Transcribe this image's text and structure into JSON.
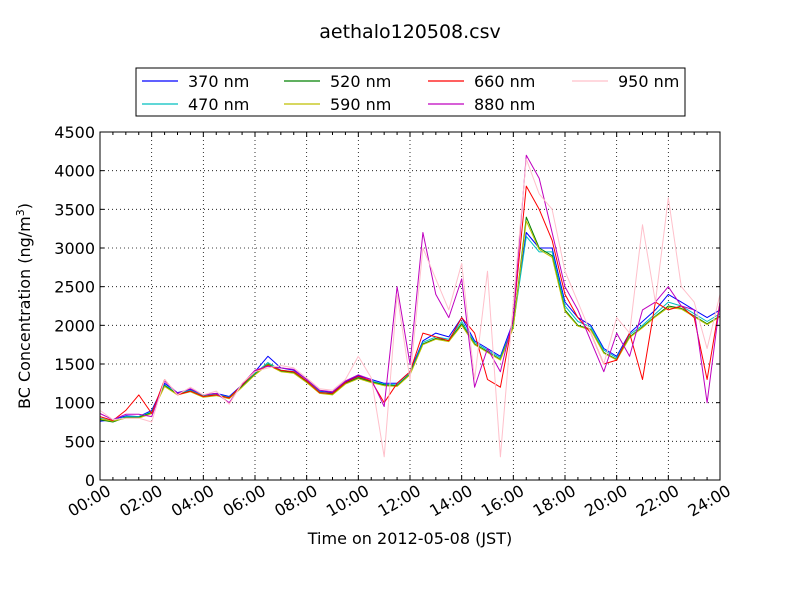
{
  "chart_data": {
    "type": "line",
    "title": "aethalo120508.csv",
    "xlabel": "Time on 2012-05-08 (JST)",
    "ylabel": "BC Concentration (ng/m",
    "ylabel_sup": "3",
    "ylabel_end": ")",
    "xlim": [
      "00:00",
      "24:00"
    ],
    "ylim": [
      0,
      4500
    ],
    "grid": true,
    "legend_position": "top",
    "x_ticks": [
      "00:00",
      "02:00",
      "04:00",
      "06:00",
      "08:00",
      "10:00",
      "12:00",
      "14:00",
      "16:00",
      "18:00",
      "20:00",
      "22:00",
      "24:00"
    ],
    "y_ticks": [
      "0",
      "500",
      "1000",
      "1500",
      "2000",
      "2500",
      "3000",
      "3500",
      "4000",
      "4500"
    ],
    "x": [
      "00:00",
      "00:30",
      "01:00",
      "01:30",
      "02:00",
      "02:30",
      "03:00",
      "03:30",
      "04:00",
      "04:30",
      "05:00",
      "05:30",
      "06:00",
      "06:30",
      "07:00",
      "07:30",
      "08:00",
      "08:30",
      "09:00",
      "09:30",
      "10:00",
      "10:30",
      "11:00",
      "11:30",
      "12:00",
      "12:30",
      "13:00",
      "13:30",
      "14:00",
      "14:30",
      "15:00",
      "15:30",
      "16:00",
      "16:30",
      "17:00",
      "17:30",
      "18:00",
      "18:30",
      "19:00",
      "19:30",
      "20:00",
      "20:30",
      "21:00",
      "21:30",
      "22:00",
      "22:30",
      "23:00",
      "23:30",
      "24:00"
    ],
    "series": [
      {
        "name": "370 nm",
        "color": "#0000ff",
        "values": [
          760,
          780,
          830,
          820,
          900,
          1250,
          1130,
          1170,
          1100,
          1120,
          1080,
          1230,
          1400,
          1600,
          1450,
          1420,
          1300,
          1150,
          1130,
          1270,
          1350,
          1300,
          1250,
          1250,
          1400,
          1800,
          1900,
          1850,
          2100,
          1800,
          1700,
          1600,
          2050,
          3200,
          3000,
          3000,
          2300,
          2100,
          2000,
          1700,
          1600,
          1900,
          2050,
          2200,
          2400,
          2300,
          2200,
          2100,
          2200
        ]
      },
      {
        "name": "470 nm",
        "color": "#00bfbf",
        "values": [
          800,
          760,
          820,
          820,
          880,
          1230,
          1120,
          1160,
          1090,
          1110,
          1070,
          1220,
          1380,
          1520,
          1420,
          1400,
          1280,
          1140,
          1120,
          1260,
          1330,
          1280,
          1240,
          1230,
          1380,
          1780,
          1850,
          1820,
          2050,
          1780,
          1680,
          1580,
          2000,
          3150,
          2950,
          2950,
          2250,
          2050,
          1980,
          1680,
          1580,
          1880,
          2000,
          2150,
          2300,
          2250,
          2150,
          2050,
          2150
        ]
      },
      {
        "name": "520 nm",
        "color": "#008000",
        "values": [
          780,
          750,
          810,
          810,
          870,
          1220,
          1110,
          1150,
          1080,
          1100,
          1060,
          1210,
          1370,
          1500,
          1410,
          1390,
          1270,
          1130,
          1110,
          1250,
          1320,
          1270,
          1230,
          1220,
          1370,
          1760,
          1830,
          1800,
          2020,
          1760,
          1660,
          1560,
          1980,
          3400,
          3000,
          2900,
          2200,
          2000,
          1950,
          1650,
          1560,
          1850,
          1980,
          2120,
          2250,
          2220,
          2120,
          2020,
          2120
        ]
      },
      {
        "name": "590 nm",
        "color": "#bfbf00",
        "values": [
          790,
          760,
          800,
          800,
          860,
          1210,
          1100,
          1140,
          1070,
          1090,
          1050,
          1200,
          1360,
          1490,
          1400,
          1380,
          1260,
          1120,
          1100,
          1240,
          1310,
          1260,
          1220,
          1210,
          1360,
          1750,
          1820,
          1790,
          2000,
          1750,
          1650,
          1550,
          1970,
          3350,
          2980,
          2880,
          2180,
          1990,
          1940,
          1640,
          1550,
          1840,
          1970,
          2110,
          2230,
          2210,
          2110,
          2010,
          2110
        ]
      },
      {
        "name": "660 nm",
        "color": "#ff0000",
        "values": [
          820,
          770,
          900,
          1100,
          860,
          1300,
          1100,
          1150,
          1080,
          1100,
          1060,
          1230,
          1400,
          1480,
          1420,
          1400,
          1280,
          1130,
          1120,
          1260,
          1340,
          1280,
          1000,
          1250,
          1400,
          1900,
          1850,
          1800,
          2100,
          1900,
          1300,
          1200,
          2100,
          3800,
          3500,
          3100,
          2400,
          2100,
          1900,
          1500,
          1550,
          1900,
          1300,
          2300,
          2200,
          2250,
          2100,
          1300,
          2300
        ]
      },
      {
        "name": "880 nm",
        "color": "#bf00bf",
        "values": [
          860,
          780,
          850,
          850,
          820,
          1280,
          1120,
          1180,
          1100,
          1120,
          1000,
          1240,
          1420,
          1470,
          1450,
          1430,
          1300,
          1160,
          1140,
          1280,
          1360,
          1300,
          950,
          2500,
          1500,
          3200,
          2400,
          2100,
          2600,
          1200,
          1700,
          1400,
          2100,
          4200,
          3900,
          3200,
          2500,
          2200,
          1800,
          1400,
          1900,
          1600,
          2200,
          2300,
          2500,
          2250,
          2200,
          1000,
          2300
        ]
      },
      {
        "name": "950 nm",
        "color": "#ffc0cb",
        "values": [
          900,
          780,
          800,
          800,
          750,
          1300,
          1100,
          1200,
          1100,
          1150,
          980,
          1250,
          1400,
          1450,
          1480,
          1450,
          1320,
          1180,
          1160,
          1300,
          1600,
          1320,
          300,
          2400,
          1300,
          3000,
          2600,
          2200,
          2800,
          1300,
          2700,
          300,
          2300,
          4150,
          3700,
          3500,
          2700,
          2300,
          1900,
          1500,
          2100,
          1900,
          3300,
          2300,
          3650,
          2500,
          2300,
          1700,
          2400
        ]
      }
    ]
  }
}
